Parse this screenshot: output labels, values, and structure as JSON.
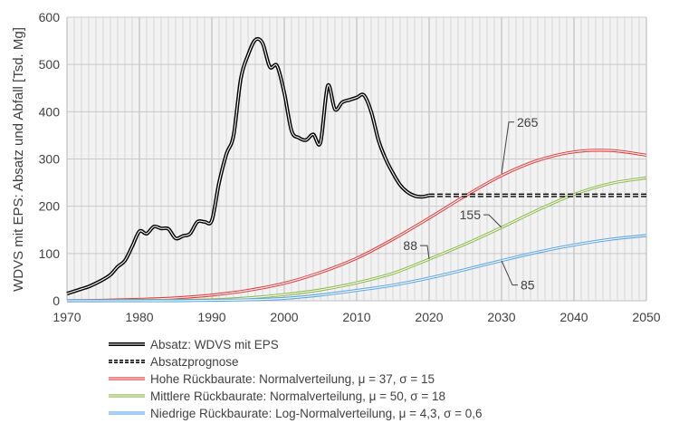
{
  "chart_data": {
    "type": "line",
    "title": "",
    "xlabel": "",
    "ylabel": "WDVS mit EPS: Absatz und Abfall [Tsd. Mg]",
    "xlim": [
      1970,
      2050
    ],
    "ylim": [
      0,
      600
    ],
    "xticks": [
      "1970",
      "1980",
      "1990",
      "2000",
      "2010",
      "2020",
      "2030",
      "2040",
      "2050"
    ],
    "yticks": [
      "0",
      "100",
      "200",
      "300",
      "400",
      "500",
      "600"
    ],
    "grid": true,
    "legend_position": "bottom",
    "series": [
      {
        "name": "Absatz: WDVS mit EPS",
        "color": "#000000",
        "style": "double",
        "x": [
          1970,
          1971,
          1972,
          1973,
          1974,
          1975,
          1976,
          1977,
          1978,
          1979,
          1980,
          1981,
          1982,
          1983,
          1984,
          1985,
          1986,
          1987,
          1988,
          1989,
          1990,
          1991,
          1992,
          1993,
          1994,
          1995,
          1996,
          1997,
          1998,
          1999,
          2000,
          2001,
          2002,
          2003,
          2004,
          2005,
          2006,
          2007,
          2008,
          2009,
          2010,
          2011,
          2012,
          2013,
          2014,
          2015,
          2016,
          2017,
          2018,
          2019,
          2020
        ],
        "y": [
          15,
          20,
          25,
          30,
          37,
          45,
          55,
          72,
          85,
          115,
          147,
          142,
          157,
          153,
          152,
          132,
          137,
          142,
          167,
          167,
          170,
          250,
          310,
          350,
          470,
          520,
          552,
          545,
          495,
          497,
          440,
          360,
          345,
          340,
          352,
          335,
          455,
          405,
          420,
          425,
          430,
          435,
          400,
          340,
          300,
          270,
          245,
          230,
          222,
          220,
          223
        ]
      },
      {
        "name": "Absatzprognose",
        "color": "#000000",
        "style": "dashed-double",
        "x": [
          2020,
          2050
        ],
        "y": [
          223,
          223
        ]
      },
      {
        "name": "Hohe Rückbaurate: Normalverteilung, μ = 37, σ = 15",
        "color": "#e03c3c",
        "style": "double",
        "x": [
          1970,
          1975,
          1980,
          1985,
          1990,
          1995,
          2000,
          2005,
          2010,
          2015,
          2020,
          2025,
          2030,
          2035,
          2040,
          2045,
          2050
        ],
        "y": [
          0,
          1,
          3,
          6,
          12,
          22,
          37,
          60,
          90,
          130,
          175,
          222,
          265,
          297,
          315,
          318,
          308
        ]
      },
      {
        "name": "Mittlere Rückbaurate: Normalverteilung, μ = 50, σ = 18",
        "color": "#8cb84a",
        "style": "double",
        "x": [
          1970,
          1975,
          1980,
          1985,
          1990,
          1995,
          2000,
          2005,
          2010,
          2015,
          2020,
          2025,
          2030,
          2035,
          2040,
          2045,
          2050
        ],
        "y": [
          0,
          0,
          1,
          1,
          2,
          6,
          13,
          23,
          38,
          58,
          88,
          120,
          155,
          192,
          225,
          248,
          260
        ]
      },
      {
        "name": "Niedrige Rückbaurate: Log-Normalverteilung, μ = 4,3, σ = 0,6",
        "color": "#5ba3e0",
        "style": "double",
        "x": [
          1970,
          1975,
          1980,
          1985,
          1990,
          1995,
          2000,
          2005,
          2010,
          2015,
          2020,
          2025,
          2030,
          2035,
          2040,
          2045,
          2050
        ],
        "y": [
          0,
          0,
          0,
          0,
          1,
          2,
          5,
          12,
          22,
          33,
          48,
          66,
          85,
          103,
          118,
          130,
          138
        ]
      }
    ],
    "annotations": [
      {
        "text": "265",
        "x": 2030,
        "y": 265,
        "series": "Hohe Rückbaurate"
      },
      {
        "text": "155",
        "x": 2030,
        "y": 155,
        "series": "Mittlere Rückbaurate"
      },
      {
        "text": "88",
        "x": 2020,
        "y": 88,
        "series": "Mittlere Rückbaurate"
      },
      {
        "text": "85",
        "x": 2030,
        "y": 85,
        "series": "Niedrige Rückbaurate"
      }
    ]
  }
}
